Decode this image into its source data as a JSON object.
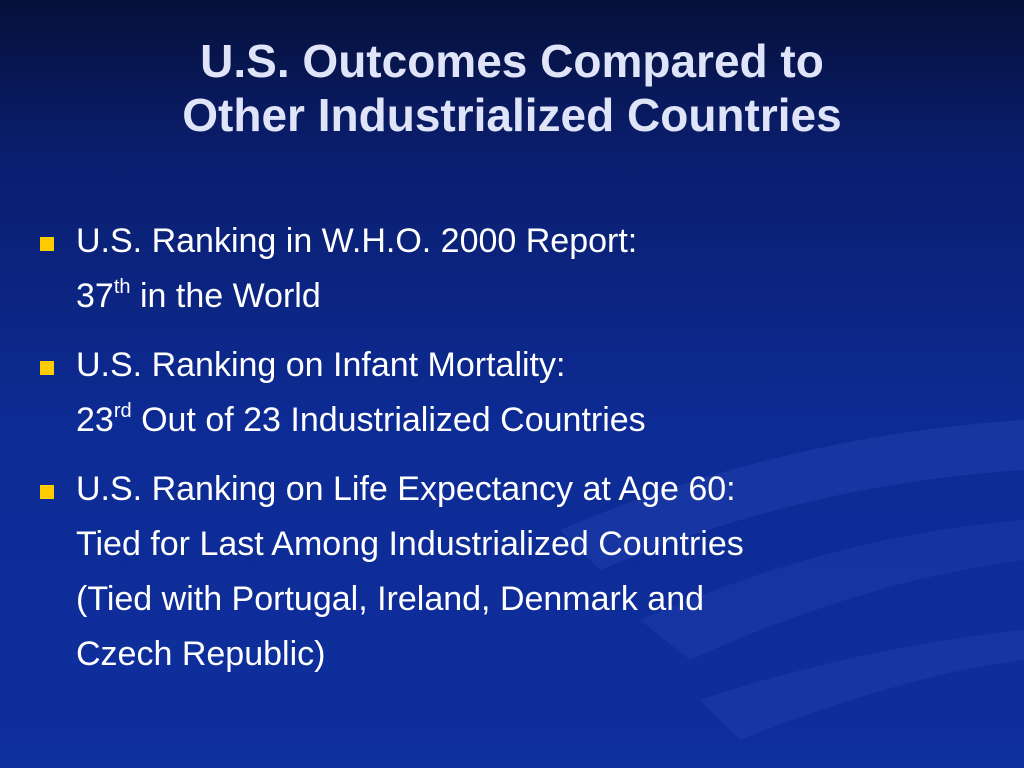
{
  "slide": {
    "title_line1": "U.S. Outcomes Compared to",
    "title_line2": "Other Industrialized Countries",
    "bullets": [
      {
        "line1": "U.S. Ranking in W.H.O. 2000 Report:",
        "rank_number": "37",
        "rank_suffix": "th",
        "rank_rest": " in the World"
      },
      {
        "line1": "U.S. Ranking on Infant Mortality:",
        "rank_number": "23",
        "rank_suffix": "rd",
        "rank_rest": " Out of 23 Industrialized Countries"
      },
      {
        "line1": "U.S. Ranking on Life Expectancy at Age 60:",
        "line2": "Tied for Last Among Industrialized Countries",
        "line3": "(Tied with Portugal, Ireland, Denmark and",
        "line4": "Czech Republic)"
      }
    ]
  },
  "colors": {
    "background": "#0d2b94",
    "title_text": "#dfe4f8",
    "body_text": "#ffffff",
    "bullet_marker": "#ffcc00"
  }
}
